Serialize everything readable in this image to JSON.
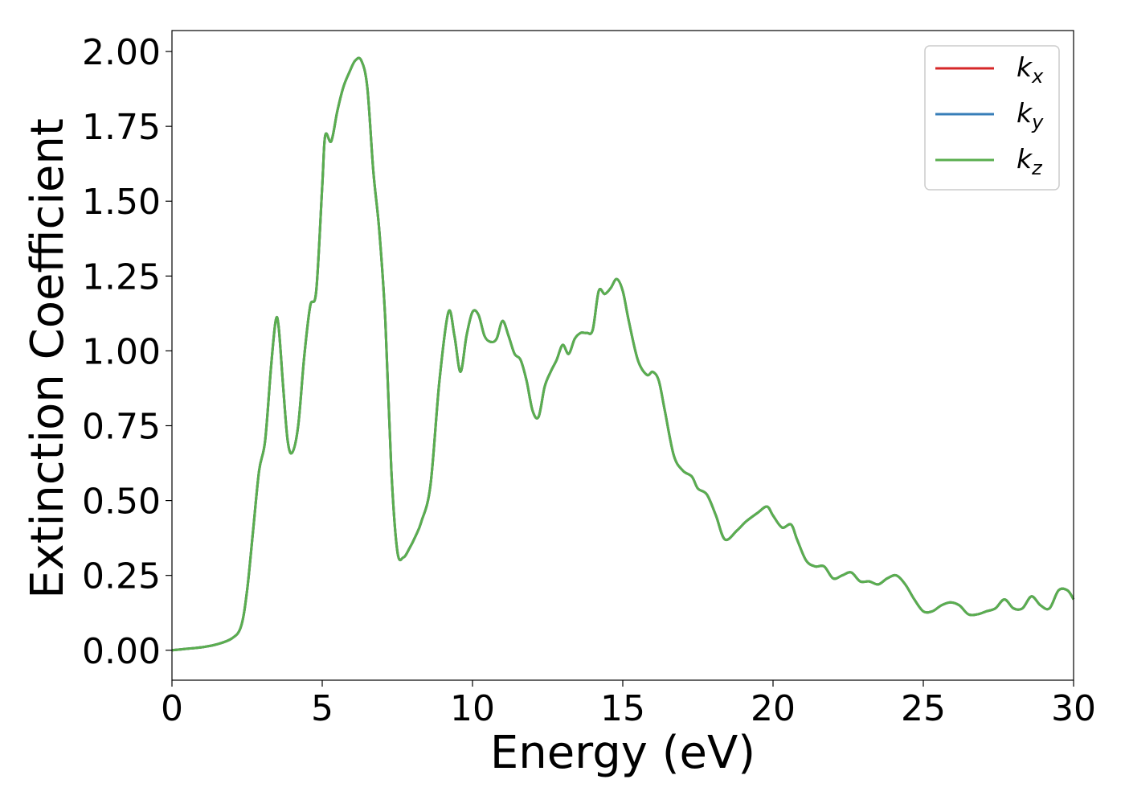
{
  "chart_data": {
    "type": "line",
    "title": "",
    "xlabel": "Energy (eV)",
    "ylabel": "Extinction Coefficient",
    "xlim": [
      0,
      30
    ],
    "ylim": [
      -0.1,
      2.07
    ],
    "xticks": [
      0,
      5,
      10,
      15,
      20,
      25,
      30
    ],
    "xtick_labels": [
      "0",
      "5",
      "10",
      "15",
      "20",
      "25",
      "30"
    ],
    "yticks": [
      0,
      0.25,
      0.5,
      0.75,
      1.0,
      1.25,
      1.5,
      1.75,
      2.0
    ],
    "ytick_labels": [
      "0.00",
      "0.25",
      "0.50",
      "0.75",
      "1.00",
      "1.25",
      "1.50",
      "1.75",
      "2.00"
    ],
    "grid": false,
    "legend_position": "top-right",
    "x": [
      0,
      0.5,
      1,
      1.5,
      2,
      2.3,
      2.5,
      2.7,
      2.9,
      3.1,
      3.3,
      3.45,
      3.55,
      3.7,
      3.85,
      4.0,
      4.2,
      4.4,
      4.6,
      4.8,
      5.0,
      5.1,
      5.3,
      5.5,
      5.7,
      5.9,
      6.1,
      6.3,
      6.5,
      6.7,
      6.9,
      7.1,
      7.3,
      7.5,
      7.7,
      7.9,
      8.1,
      8.3,
      8.6,
      8.9,
      9.2,
      9.4,
      9.6,
      9.8,
      10.0,
      10.2,
      10.4,
      10.6,
      10.8,
      11.0,
      11.2,
      11.4,
      11.6,
      11.8,
      12.0,
      12.2,
      12.4,
      12.6,
      12.8,
      13.0,
      13.2,
      13.4,
      13.6,
      13.8,
      14.0,
      14.2,
      14.4,
      14.6,
      14.8,
      15.0,
      15.2,
      15.5,
      15.8,
      16.0,
      16.2,
      16.4,
      16.7,
      17.0,
      17.3,
      17.5,
      17.8,
      18.1,
      18.4,
      18.8,
      19.1,
      19.5,
      19.8,
      20.0,
      20.3,
      20.6,
      20.8,
      21.1,
      21.4,
      21.7,
      22.0,
      22.3,
      22.6,
      22.9,
      23.2,
      23.5,
      23.8,
      24.1,
      24.4,
      24.7,
      25.0,
      25.3,
      25.6,
      25.9,
      26.2,
      26.5,
      26.8,
      27.1,
      27.4,
      27.7,
      28.0,
      28.3,
      28.6,
      28.9,
      29.2,
      29.5,
      29.8,
      30.0
    ],
    "series": [
      {
        "name": "k_x",
        "label_base": "k",
        "label_sub": "x",
        "color": "#d62728",
        "values": [
          0.0,
          0.005,
          0.01,
          0.02,
          0.04,
          0.08,
          0.2,
          0.4,
          0.6,
          0.7,
          0.95,
          1.1,
          1.08,
          0.88,
          0.7,
          0.66,
          0.75,
          0.98,
          1.15,
          1.2,
          1.55,
          1.72,
          1.7,
          1.8,
          1.88,
          1.93,
          1.97,
          1.97,
          1.88,
          1.6,
          1.4,
          1.1,
          0.6,
          0.33,
          0.31,
          0.34,
          0.38,
          0.43,
          0.55,
          0.9,
          1.13,
          1.05,
          0.93,
          1.05,
          1.13,
          1.12,
          1.05,
          1.03,
          1.04,
          1.1,
          1.05,
          0.99,
          0.97,
          0.9,
          0.8,
          0.78,
          0.88,
          0.93,
          0.97,
          1.02,
          0.99,
          1.04,
          1.06,
          1.06,
          1.07,
          1.2,
          1.19,
          1.21,
          1.24,
          1.2,
          1.1,
          0.97,
          0.92,
          0.93,
          0.9,
          0.8,
          0.65,
          0.6,
          0.58,
          0.54,
          0.52,
          0.45,
          0.37,
          0.4,
          0.43,
          0.46,
          0.48,
          0.45,
          0.41,
          0.42,
          0.37,
          0.3,
          0.28,
          0.28,
          0.24,
          0.25,
          0.26,
          0.23,
          0.23,
          0.22,
          0.24,
          0.25,
          0.22,
          0.17,
          0.13,
          0.13,
          0.15,
          0.16,
          0.15,
          0.12,
          0.12,
          0.13,
          0.14,
          0.17,
          0.14,
          0.14,
          0.18,
          0.15,
          0.14,
          0.2,
          0.2,
          0.17
        ]
      },
      {
        "name": "k_y",
        "label_base": "k",
        "label_sub": "y",
        "color": "#377eb8",
        "values": [
          0.0,
          0.005,
          0.01,
          0.02,
          0.04,
          0.08,
          0.2,
          0.4,
          0.6,
          0.7,
          0.95,
          1.1,
          1.08,
          0.88,
          0.7,
          0.66,
          0.75,
          0.98,
          1.15,
          1.2,
          1.55,
          1.72,
          1.7,
          1.8,
          1.88,
          1.93,
          1.97,
          1.97,
          1.88,
          1.6,
          1.4,
          1.1,
          0.6,
          0.33,
          0.31,
          0.34,
          0.38,
          0.43,
          0.55,
          0.9,
          1.13,
          1.05,
          0.93,
          1.05,
          1.13,
          1.12,
          1.05,
          1.03,
          1.04,
          1.1,
          1.05,
          0.99,
          0.97,
          0.9,
          0.8,
          0.78,
          0.88,
          0.93,
          0.97,
          1.02,
          0.99,
          1.04,
          1.06,
          1.06,
          1.07,
          1.2,
          1.19,
          1.21,
          1.24,
          1.2,
          1.1,
          0.97,
          0.92,
          0.93,
          0.9,
          0.8,
          0.65,
          0.6,
          0.58,
          0.54,
          0.52,
          0.45,
          0.37,
          0.4,
          0.43,
          0.46,
          0.48,
          0.45,
          0.41,
          0.42,
          0.37,
          0.3,
          0.28,
          0.28,
          0.24,
          0.25,
          0.26,
          0.23,
          0.23,
          0.22,
          0.24,
          0.25,
          0.22,
          0.17,
          0.13,
          0.13,
          0.15,
          0.16,
          0.15,
          0.12,
          0.12,
          0.13,
          0.14,
          0.17,
          0.14,
          0.14,
          0.18,
          0.15,
          0.14,
          0.2,
          0.2,
          0.17
        ]
      },
      {
        "name": "k_z",
        "label_base": "k",
        "label_sub": "z",
        "color": "#5aae4f",
        "values": [
          0.0,
          0.005,
          0.01,
          0.02,
          0.04,
          0.08,
          0.2,
          0.4,
          0.6,
          0.7,
          0.95,
          1.1,
          1.08,
          0.88,
          0.7,
          0.66,
          0.75,
          0.98,
          1.15,
          1.2,
          1.55,
          1.72,
          1.7,
          1.8,
          1.88,
          1.93,
          1.97,
          1.97,
          1.88,
          1.6,
          1.4,
          1.1,
          0.6,
          0.33,
          0.31,
          0.34,
          0.38,
          0.43,
          0.55,
          0.9,
          1.13,
          1.05,
          0.93,
          1.05,
          1.13,
          1.12,
          1.05,
          1.03,
          1.04,
          1.1,
          1.05,
          0.99,
          0.97,
          0.9,
          0.8,
          0.78,
          0.88,
          0.93,
          0.97,
          1.02,
          0.99,
          1.04,
          1.06,
          1.06,
          1.07,
          1.2,
          1.19,
          1.21,
          1.24,
          1.2,
          1.1,
          0.97,
          0.92,
          0.93,
          0.9,
          0.8,
          0.65,
          0.6,
          0.58,
          0.54,
          0.52,
          0.45,
          0.37,
          0.4,
          0.43,
          0.46,
          0.48,
          0.45,
          0.41,
          0.42,
          0.37,
          0.3,
          0.28,
          0.28,
          0.24,
          0.25,
          0.26,
          0.23,
          0.23,
          0.22,
          0.24,
          0.25,
          0.22,
          0.17,
          0.13,
          0.13,
          0.15,
          0.16,
          0.15,
          0.12,
          0.12,
          0.13,
          0.14,
          0.17,
          0.14,
          0.14,
          0.18,
          0.15,
          0.14,
          0.2,
          0.2,
          0.17
        ]
      }
    ]
  }
}
